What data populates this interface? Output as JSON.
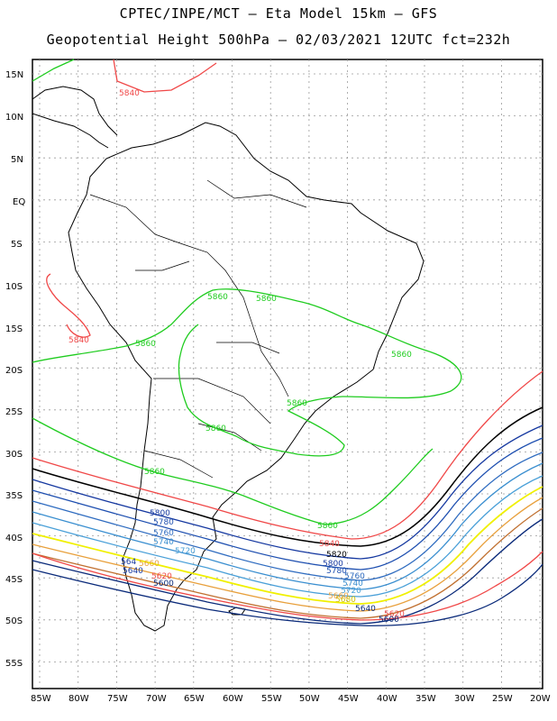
{
  "header": {
    "line1": "CPTEC/INPE/MCT –  Eta Model 15km – GFS",
    "line2": "Geopotential Height 500hPa – 02/03/2021 12UTC fct=232h"
  },
  "axes": {
    "lat_labels": [
      "15N",
      "10N",
      "5N",
      "EQ",
      "5S",
      "10S",
      "15S",
      "20S",
      "25S",
      "30S",
      "35S",
      "40S",
      "45S",
      "50S",
      "55S"
    ],
    "lon_labels": [
      "85W",
      "80W",
      "75W",
      "70W",
      "65W",
      "60W",
      "55W",
      "50W",
      "45W",
      "40W",
      "35W",
      "30W",
      "25W",
      "20W"
    ]
  },
  "colors": {
    "5800": "#0a2a7a",
    "5820": "#e43c3c",
    "5840": "#e8a03c",
    "5860": "#f0f000",
    "5880": "#0a2a9a",
    "5700": "#3a8fd0",
    "5720": "#4aa0d8",
    "5740": "#2f6cc0",
    "5760": "#1e4fb0",
    "5780": "#1538a0",
    "black": "#000000",
    "red": "#f04848",
    "green": "#1fcc1f"
  },
  "contour_labels": [
    {
      "text": "5840",
      "kind": "red"
    },
    {
      "text": "5840",
      "kind": "red"
    },
    {
      "text": "5860",
      "kind": "green"
    },
    {
      "text": "5860",
      "kind": "green"
    },
    {
      "text": "5860",
      "kind": "green"
    },
    {
      "text": "5860",
      "kind": "green"
    },
    {
      "text": "5860",
      "kind": "green"
    },
    {
      "text": "5860",
      "kind": "green"
    },
    {
      "text": "5860",
      "kind": "green"
    },
    {
      "text": "5860",
      "kind": "green"
    },
    {
      "text": "5800",
      "kind": "band1"
    },
    {
      "text": "5780",
      "kind": "band2"
    },
    {
      "text": "5760",
      "kind": "band3"
    },
    {
      "text": "5740",
      "kind": "band4"
    },
    {
      "text": "5720",
      "kind": "band5"
    },
    {
      "text": "5840",
      "kind": "red"
    },
    {
      "text": "5820",
      "kind": "black"
    },
    {
      "text": "5800",
      "kind": "band1"
    },
    {
      "text": "5780",
      "kind": "band2"
    },
    {
      "text": "5760",
      "kind": "band3"
    },
    {
      "text": "5740",
      "kind": "band4"
    },
    {
      "text": "5720",
      "kind": "band5"
    },
    {
      "text": "5680",
      "kind": "yellowlbl"
    },
    {
      "text": "5660",
      "kind": "orange"
    },
    {
      "text": "5640",
      "kind": "navy"
    },
    {
      "text": "5620",
      "kind": "red"
    },
    {
      "text": "5600",
      "kind": "navy"
    },
    {
      "text": "564",
      "kind": "band1"
    },
    {
      "text": "5660",
      "kind": "orange"
    },
    {
      "text": "5640",
      "kind": "band1"
    },
    {
      "text": "5620",
      "kind": "red"
    },
    {
      "text": "5600",
      "kind": "navy"
    }
  ]
}
